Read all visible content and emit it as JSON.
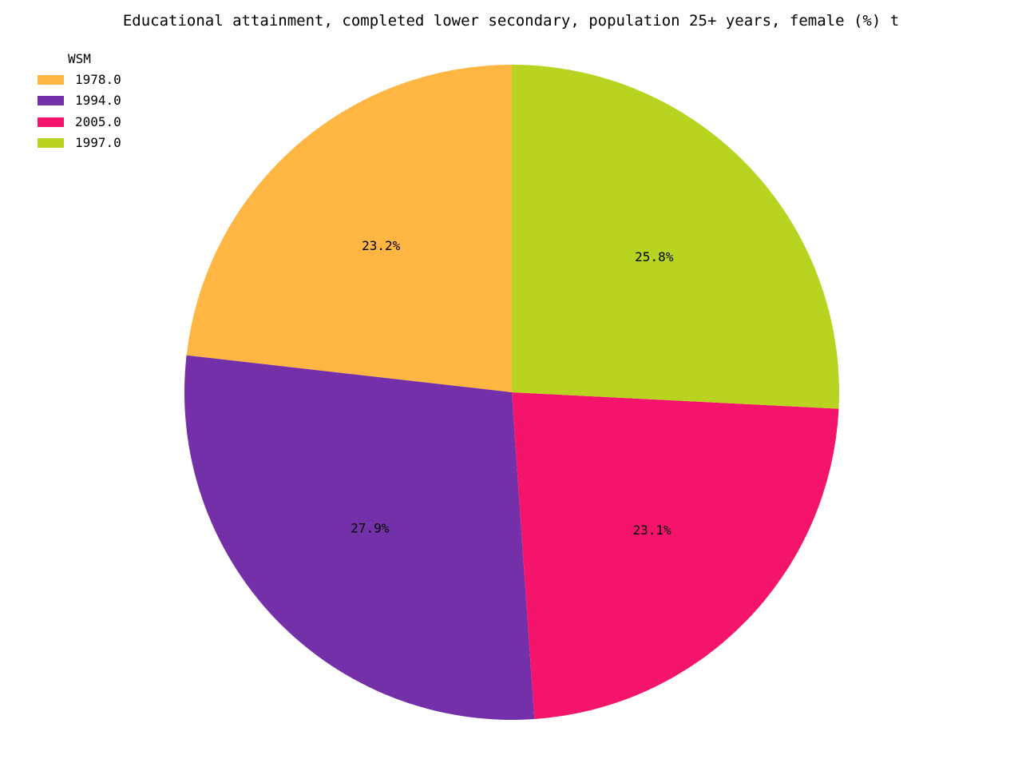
{
  "chart_data": {
    "type": "pie",
    "title": "Educational attainment, completed lower secondary, population 25+ years, female (%) t",
    "legend_title": "WSM",
    "legend_position": "top-left",
    "slices": [
      {
        "label": "1978.0",
        "value": 23.2,
        "pct_label": "23.2%",
        "color": "#FFB642"
      },
      {
        "label": "1994.0",
        "value": 27.9,
        "pct_label": "27.9%",
        "color": "#7430A9"
      },
      {
        "label": "2005.0",
        "value": 23.1,
        "pct_label": "23.1%",
        "color": "#F4146B"
      },
      {
        "label": "1997.0",
        "value": 25.8,
        "pct_label": "25.8%",
        "color": "#B9D420"
      }
    ]
  }
}
